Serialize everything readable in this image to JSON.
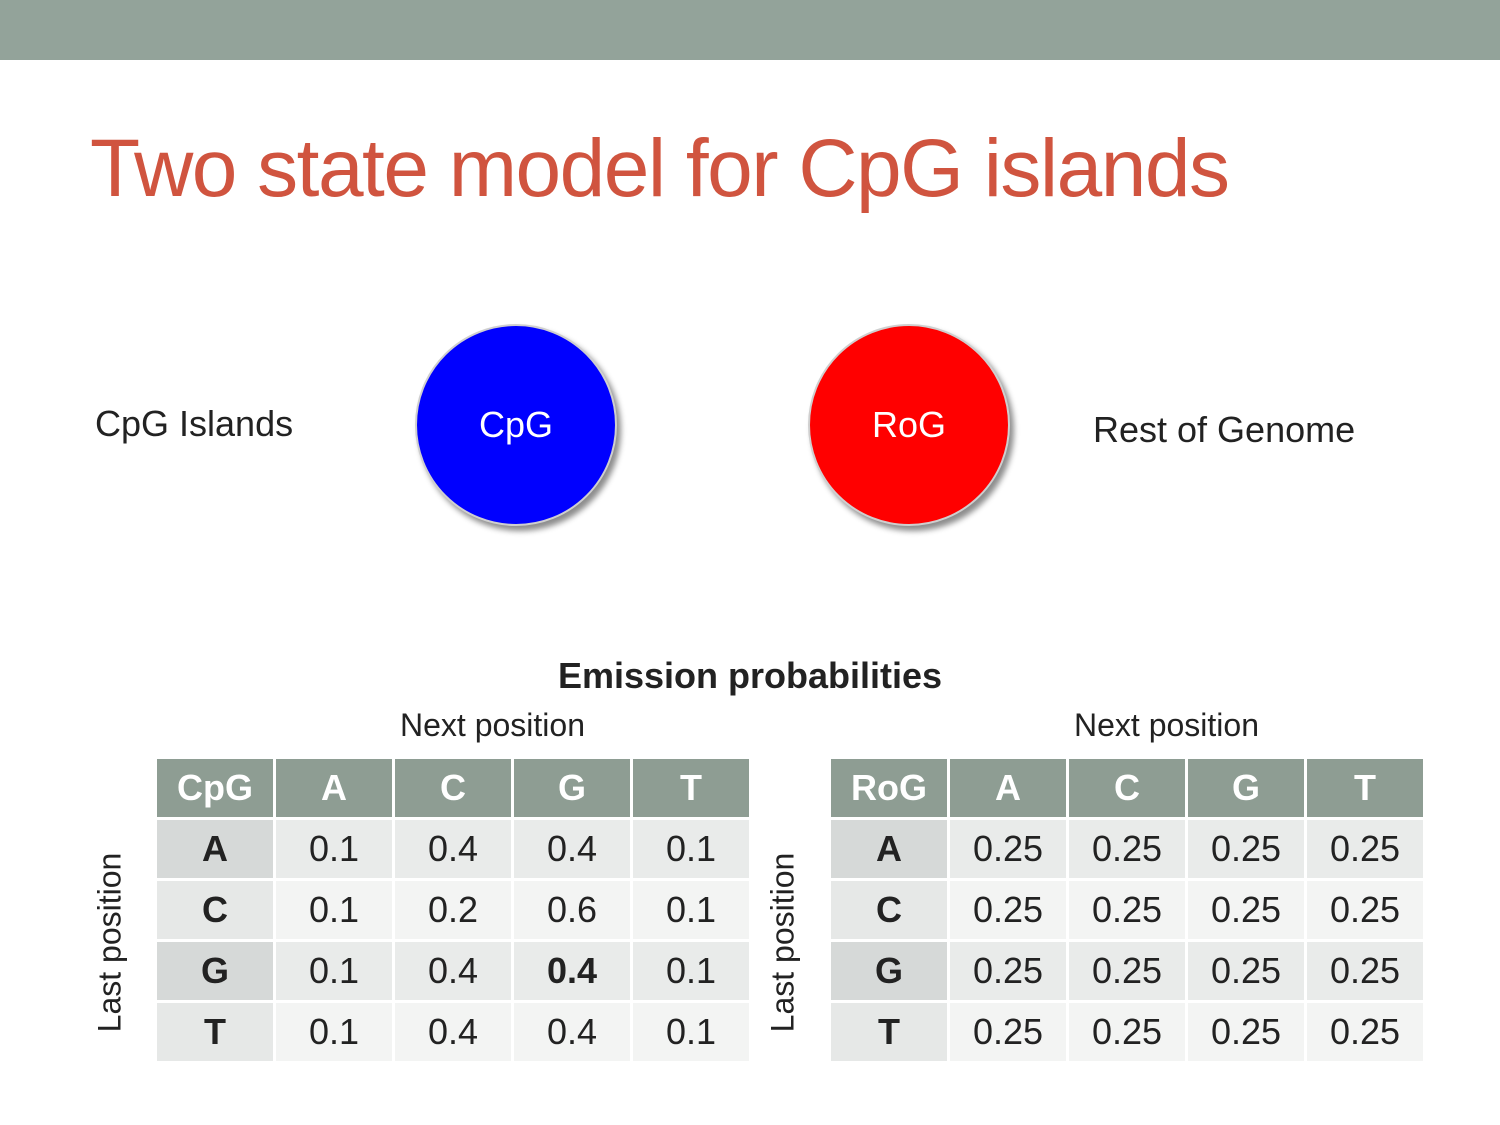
{
  "title": "Two state model for CpG islands",
  "states": [
    {
      "label": "CpG",
      "description": "CpG Islands",
      "color": "#0000ff"
    },
    {
      "label": "RoG",
      "description": "Rest of Genome",
      "color": "#ff0000"
    }
  ],
  "emission": {
    "title": "Emission probabilities",
    "tables": [
      {
        "column_label": "Next position",
        "row_label": "Last position",
        "header": [
          "CpG",
          "A",
          "C",
          "G",
          "T"
        ],
        "rows": [
          [
            "A",
            0.1,
            0.4,
            0.4,
            0.1
          ],
          [
            "C",
            0.1,
            0.2,
            0.6,
            0.1
          ],
          [
            "G",
            0.1,
            0.4,
            0.4,
            0.1
          ],
          [
            "T",
            0.1,
            0.4,
            0.4,
            0.1
          ]
        ]
      },
      {
        "column_label": "Next position",
        "row_label": "Last position",
        "header": [
          "RoG",
          "A",
          "C",
          "G",
          "T"
        ],
        "rows": [
          [
            "A",
            0.25,
            0.25,
            0.25,
            0.25
          ],
          [
            "C",
            0.25,
            0.25,
            0.25,
            0.25
          ],
          [
            "G",
            0.25,
            0.25,
            0.25,
            0.25
          ],
          [
            "T",
            0.25,
            0.25,
            0.25,
            0.25
          ]
        ]
      }
    ]
  }
}
